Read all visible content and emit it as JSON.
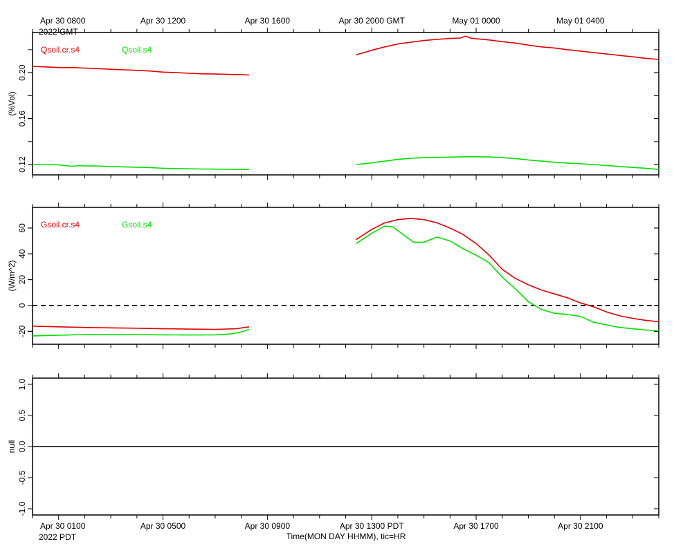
{
  "chart_data": {
    "type": "line",
    "x_unit": "hours since Apr 30 0800 GMT",
    "x_range": [
      -1,
      23
    ],
    "top_axis": {
      "labels": [
        {
          "x": 0,
          "lines": [
            "Apr 30 0800",
            "2022 GMT"
          ]
        },
        {
          "x": 4,
          "lines": [
            "Apr 30 1200"
          ]
        },
        {
          "x": 8,
          "lines": [
            "Apr 30 1600"
          ]
        },
        {
          "x": 12,
          "lines": [
            "Apr 30 2000 GMT"
          ]
        },
        {
          "x": 16,
          "lines": [
            "May 01 0000"
          ]
        },
        {
          "x": 20,
          "lines": [
            "May 01 0400"
          ]
        }
      ]
    },
    "bottom_axis": {
      "labels": [
        {
          "x": 0,
          "lines": [
            "Apr 30 0100",
            "2022 PDT"
          ]
        },
        {
          "x": 4,
          "lines": [
            "Apr 30 0500"
          ]
        },
        {
          "x": 8,
          "lines": [
            "Apr 30 0900"
          ]
        },
        {
          "x": 12,
          "lines": [
            "Apr 30 1300 PDT"
          ]
        },
        {
          "x": 16,
          "lines": [
            "Apr 30 1700"
          ]
        },
        {
          "x": 20,
          "lines": [
            "Apr 30 2100"
          ]
        }
      ],
      "title": "Time(MON DAY HHMM), tic=HR"
    },
    "panels": [
      {
        "id": "moisture",
        "ylabel": "(%Vol)",
        "ylim": [
          0.111,
          0.235
        ],
        "yticks": [
          0.12,
          0.16,
          0.2
        ],
        "ytick_labels": [
          "0.12",
          "0.16",
          "0.20"
        ],
        "minor_yticks": [
          0.12,
          0.14,
          0.16,
          0.18,
          0.2,
          0.22
        ],
        "zero_line": null,
        "series": [
          {
            "name": "Qsoil.cr.s4",
            "color": "#e00000",
            "segments": [
              [
                [
                  -1.0,
                  0.2055
                ],
                [
                  -0.5,
                  0.205
                ],
                [
                  0.0,
                  0.2045
                ],
                [
                  0.5,
                  0.2045
                ],
                [
                  1.0,
                  0.204
                ],
                [
                  1.5,
                  0.2035
                ],
                [
                  2.0,
                  0.203
                ],
                [
                  2.5,
                  0.2025
                ],
                [
                  3.0,
                  0.202
                ],
                [
                  3.5,
                  0.2015
                ],
                [
                  4.0,
                  0.2005
                ],
                [
                  4.5,
                  0.2
                ],
                [
                  5.0,
                  0.1995
                ],
                [
                  5.5,
                  0.199
                ],
                [
                  6.0,
                  0.1988
                ],
                [
                  6.5,
                  0.1985
                ],
                [
                  7.0,
                  0.1982
                ],
                [
                  7.3,
                  0.198
                ]
              ],
              [
                [
                  11.4,
                  0.2155
                ],
                [
                  12.0,
                  0.2195
                ],
                [
                  12.5,
                  0.2225
                ],
                [
                  13.0,
                  0.225
                ],
                [
                  13.5,
                  0.2265
                ],
                [
                  14.0,
                  0.228
                ],
                [
                  14.5,
                  0.229
                ],
                [
                  15.0,
                  0.2298
                ],
                [
                  15.4,
                  0.2302
                ],
                [
                  15.6,
                  0.2318
                ],
                [
                  15.8,
                  0.23
                ],
                [
                  16.0,
                  0.2295
                ],
                [
                  16.5,
                  0.2285
                ],
                [
                  17.0,
                  0.227
                ],
                [
                  17.5,
                  0.2258
                ],
                [
                  18.0,
                  0.224
                ],
                [
                  18.5,
                  0.2225
                ],
                [
                  19.0,
                  0.2215
                ],
                [
                  19.5,
                  0.22
                ],
                [
                  20.0,
                  0.2188
                ],
                [
                  20.5,
                  0.2175
                ],
                [
                  21.0,
                  0.2163
                ],
                [
                  21.5,
                  0.215
                ],
                [
                  22.0,
                  0.2138
                ],
                [
                  22.5,
                  0.2125
                ],
                [
                  23.0,
                  0.2115
                ]
              ]
            ]
          },
          {
            "name": "Qsoil.s4",
            "color": "#00e000",
            "segments": [
              [
                [
                  -1.0,
                  0.12
                ],
                [
                  -0.5,
                  0.12
                ],
                [
                  0.0,
                  0.1197
                ],
                [
                  0.3,
                  0.119
                ],
                [
                  0.5,
                  0.1185
                ],
                [
                  0.8,
                  0.119
                ],
                [
                  1.0,
                  0.1188
                ],
                [
                  1.5,
                  0.1187
                ],
                [
                  2.0,
                  0.1183
                ],
                [
                  2.5,
                  0.118
                ],
                [
                  3.0,
                  0.1177
                ],
                [
                  3.5,
                  0.1174
                ],
                [
                  3.8,
                  0.117
                ],
                [
                  4.0,
                  0.1168
                ],
                [
                  4.5,
                  0.1165
                ],
                [
                  5.0,
                  0.1163
                ],
                [
                  5.5,
                  0.1161
                ],
                [
                  6.0,
                  0.116
                ],
                [
                  6.5,
                  0.1158
                ],
                [
                  7.0,
                  0.1157
                ],
                [
                  7.3,
                  0.1157
                ]
              ],
              [
                [
                  11.4,
                  0.12
                ],
                [
                  12.0,
                  0.1215
                ],
                [
                  12.5,
                  0.123
                ],
                [
                  13.0,
                  0.1245
                ],
                [
                  13.5,
                  0.1255
                ],
                [
                  14.0,
                  0.126
                ],
                [
                  14.5,
                  0.1262
                ],
                [
                  15.0,
                  0.1265
                ],
                [
                  15.5,
                  0.1268
                ],
                [
                  16.0,
                  0.1268
                ],
                [
                  16.5,
                  0.1266
                ],
                [
                  17.0,
                  0.126
                ],
                [
                  17.5,
                  0.1252
                ],
                [
                  18.0,
                  0.124
                ],
                [
                  18.5,
                  0.123
                ],
                [
                  19.0,
                  0.122
                ],
                [
                  19.5,
                  0.1213
                ],
                [
                  20.0,
                  0.1207
                ],
                [
                  20.5,
                  0.12
                ],
                [
                  21.0,
                  0.1192
                ],
                [
                  21.5,
                  0.1183
                ],
                [
                  22.0,
                  0.1175
                ],
                [
                  22.5,
                  0.1168
                ],
                [
                  23.0,
                  0.1157
                ]
              ]
            ]
          }
        ]
      },
      {
        "id": "heatflux",
        "ylabel": "(W/m^2)",
        "ylim": [
          -30,
          76
        ],
        "yticks": [
          -20,
          0,
          20,
          40,
          60
        ],
        "ytick_labels": [
          "-20",
          "0",
          "20",
          "40",
          "60"
        ],
        "minor_yticks": [
          -20,
          0,
          20,
          40,
          60
        ],
        "zero_line": 0,
        "series": [
          {
            "name": "Gsoil.cr.s4",
            "color": "#e00000",
            "segments": [
              [
                [
                  -1.0,
                  -16.0
                ],
                [
                  0.0,
                  -16.5
                ],
                [
                  1.0,
                  -17.0
                ],
                [
                  2.0,
                  -17.3
                ],
                [
                  3.0,
                  -17.6
                ],
                [
                  4.0,
                  -18.0
                ],
                [
                  5.0,
                  -18.3
                ],
                [
                  6.0,
                  -18.5
                ],
                [
                  6.8,
                  -18.0
                ],
                [
                  7.3,
                  -16.5
                ]
              ],
              [
                [
                  11.4,
                  51.0
                ],
                [
                  12.0,
                  59.0
                ],
                [
                  12.5,
                  64.0
                ],
                [
                  13.0,
                  66.5
                ],
                [
                  13.5,
                  67.5
                ],
                [
                  14.0,
                  66.5
                ],
                [
                  14.5,
                  64.0
                ],
                [
                  15.0,
                  60.0
                ],
                [
                  15.5,
                  55.0
                ],
                [
                  16.0,
                  48.0
                ],
                [
                  16.5,
                  39.0
                ],
                [
                  17.0,
                  28.0
                ],
                [
                  17.5,
                  21.0
                ],
                [
                  18.0,
                  16.0
                ],
                [
                  18.5,
                  12.0
                ],
                [
                  19.0,
                  9.0
                ],
                [
                  19.5,
                  6.0
                ],
                [
                  20.0,
                  2.0
                ],
                [
                  20.5,
                  -1.0
                ],
                [
                  21.0,
                  -5.0
                ],
                [
                  21.5,
                  -8.0
                ],
                [
                  22.0,
                  -10.0
                ],
                [
                  22.5,
                  -11.5
                ],
                [
                  23.0,
                  -12.5
                ]
              ]
            ]
          },
          {
            "name": "Gsoil.s4",
            "color": "#00e000",
            "segments": [
              [
                [
                  -1.0,
                  -23.5
                ],
                [
                  0.0,
                  -23.0
                ],
                [
                  1.0,
                  -22.5
                ],
                [
                  2.0,
                  -22.6
                ],
                [
                  3.0,
                  -22.5
                ],
                [
                  4.0,
                  -22.7
                ],
                [
                  5.0,
                  -22.8
                ],
                [
                  6.0,
                  -22.7
                ],
                [
                  6.6,
                  -22.0
                ],
                [
                  7.0,
                  -20.5
                ],
                [
                  7.3,
                  -18.5
                ]
              ],
              [
                [
                  11.4,
                  48.0
                ],
                [
                  12.0,
                  56.0
                ],
                [
                  12.5,
                  61.5
                ],
                [
                  12.8,
                  61.0
                ],
                [
                  13.2,
                  55.0
                ],
                [
                  13.6,
                  49.0
                ],
                [
                  14.0,
                  49.0
                ],
                [
                  14.5,
                  53.0
                ],
                [
                  15.0,
                  50.0
                ],
                [
                  15.5,
                  44.0
                ],
                [
                  16.0,
                  39.0
                ],
                [
                  16.5,
                  33.0
                ],
                [
                  17.0,
                  22.0
                ],
                [
                  17.5,
                  13.0
                ],
                [
                  18.0,
                  3.0
                ],
                [
                  18.5,
                  -3.0
                ],
                [
                  19.0,
                  -6.0
                ],
                [
                  19.5,
                  -7.0
                ],
                [
                  20.0,
                  -8.5
                ],
                [
                  20.5,
                  -13.0
                ],
                [
                  21.0,
                  -15.0
                ],
                [
                  21.5,
                  -17.0
                ],
                [
                  22.0,
                  -18.0
                ],
                [
                  22.5,
                  -19.0
                ],
                [
                  23.0,
                  -19.5
                ]
              ]
            ]
          }
        ]
      },
      {
        "id": "null",
        "ylabel": "null",
        "ylim": [
          -1.1,
          1.1
        ],
        "yticks": [
          -1.0,
          -0.5,
          0.0,
          0.5,
          1.0
        ],
        "ytick_labels": [
          "-1.0",
          "-0.5",
          "0.0",
          "0.5",
          "1.0"
        ],
        "minor_yticks": [],
        "zero_line": 0,
        "series": []
      }
    ]
  }
}
